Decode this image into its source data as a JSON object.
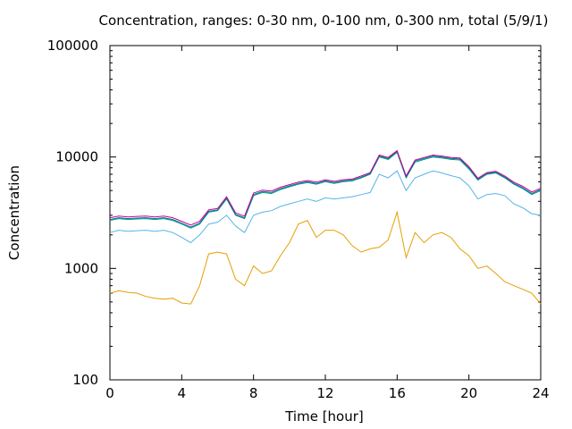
{
  "chart_data": {
    "type": "line",
    "title": "Concentration, ranges: 0-30 nm, 0-100 nm, 0-300 nm, total (5/9/1)",
    "xlabel": "Time [hour]",
    "ylabel": "Concentration",
    "xlim": [
      0,
      24
    ],
    "ylim": [
      100,
      100000
    ],
    "yscale": "log",
    "grid": false,
    "legend": "none",
    "x_ticks": [
      "0",
      "4",
      "8",
      "12",
      "16",
      "20",
      "24"
    ],
    "y_ticks": [
      "100",
      "1000",
      "10000",
      "100000"
    ],
    "x": [
      0,
      0.5,
      1,
      1.5,
      2,
      2.5,
      3,
      3.5,
      4,
      4.5,
      5,
      5.5,
      6,
      6.5,
      7,
      7.5,
      8,
      8.5,
      9,
      9.5,
      10,
      10.5,
      11,
      11.5,
      12,
      12.5,
      13,
      13.5,
      14,
      14.5,
      15,
      15.5,
      16,
      16.5,
      17,
      17.5,
      18,
      18.5,
      19,
      19.5,
      20,
      20.5,
      21,
      21.5,
      22,
      22.5,
      23,
      23.5,
      24
    ],
    "series": [
      {
        "color": "#e69f00",
        "values": [
          600,
          630,
          610,
          600,
          560,
          540,
          530,
          540,
          490,
          480,
          700,
          1350,
          1400,
          1350,
          800,
          700,
          1050,
          900,
          950,
          1300,
          1700,
          2500,
          2700,
          1900,
          2200,
          2200,
          2000,
          1600,
          1400,
          1500,
          1550,
          1800,
          3200,
          1250,
          2100,
          1700,
          2000,
          2100,
          1900,
          1500,
          1300,
          1000,
          1050,
          900,
          760,
          700,
          650,
          600,
          480
        ]
      },
      {
        "color": "#56b4e9",
        "values": [
          2100,
          2200,
          2150,
          2180,
          2200,
          2150,
          2200,
          2100,
          1900,
          1700,
          2000,
          2500,
          2600,
          3000,
          2400,
          2100,
          3000,
          3200,
          3300,
          3600,
          3800,
          4000,
          4200,
          4000,
          4300,
          4200,
          4300,
          4400,
          4600,
          4800,
          7000,
          6500,
          7500,
          5000,
          6500,
          7000,
          7500,
          7200,
          6800,
          6500,
          5500,
          4200,
          4600,
          4700,
          4500,
          3800,
          3500,
          3100,
          3000
        ]
      },
      {
        "color": "#009e73",
        "values": [
          2700,
          2800,
          2750,
          2780,
          2800,
          2750,
          2800,
          2700,
          2500,
          2300,
          2500,
          3200,
          3300,
          4200,
          3000,
          2800,
          4500,
          4800,
          4700,
          5100,
          5400,
          5700,
          5900,
          5700,
          6000,
          5800,
          6000,
          6100,
          6500,
          7000,
          10000,
          9500,
          11000,
          6500,
          9000,
          9500,
          10000,
          9800,
          9500,
          9400,
          7800,
          6200,
          7000,
          7200,
          6500,
          5700,
          5200,
          4600,
          5000
        ]
      },
      {
        "color": "#0072b2",
        "values": [
          2750,
          2850,
          2800,
          2830,
          2850,
          2800,
          2850,
          2750,
          2550,
          2350,
          2550,
          3250,
          3350,
          4300,
          3050,
          2850,
          4600,
          4900,
          4800,
          5200,
          5500,
          5800,
          6000,
          5800,
          6100,
          5900,
          6100,
          6200,
          6600,
          7100,
          10200,
          9700,
          11200,
          6600,
          9200,
          9700,
          10200,
          10000,
          9700,
          9600,
          8000,
          6300,
          7100,
          7300,
          6600,
          5800,
          5300,
          4700,
          5100
        ]
      },
      {
        "color": "#cc0088",
        "values": [
          2850,
          2950,
          2900,
          2930,
          2950,
          2900,
          2950,
          2850,
          2650,
          2450,
          2650,
          3350,
          3450,
          4400,
          3150,
          2950,
          4750,
          5050,
          4950,
          5350,
          5650,
          5950,
          6150,
          5950,
          6250,
          6050,
          6250,
          6350,
          6750,
          7250,
          10400,
          9900,
          11400,
          6750,
          9400,
          9900,
          10400,
          10200,
          9900,
          9800,
          8200,
          6450,
          7250,
          7450,
          6750,
          5950,
          5450,
          4850,
          5250
        ]
      }
    ]
  }
}
